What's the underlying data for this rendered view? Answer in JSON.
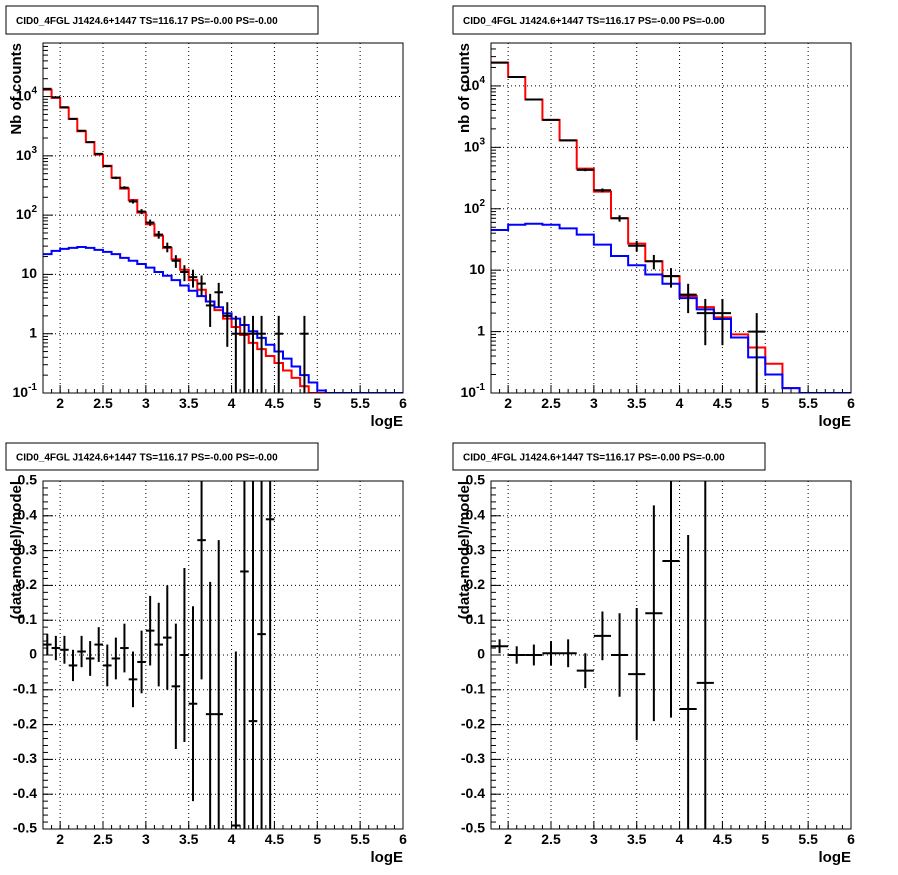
{
  "chart_data": [
    {
      "panel": "top-left",
      "type": "line",
      "title": "CID0_4FGL J1424.6+1447 TS=116.17 PS=-0.00 PS=-0.00",
      "xlabel": "logE",
      "ylabel": "Nb of counts",
      "xlim": [
        1.8,
        6.0
      ],
      "ylim": [
        0.1,
        80000
      ],
      "yscale": "log",
      "grid": true,
      "x_ticks": [
        "2",
        "2.5",
        "3",
        "3.5",
        "4",
        "4.5",
        "5",
        "5.5",
        "6"
      ],
      "y_ticks": [
        "10^-1",
        "1",
        "10",
        "10^2",
        "10^3",
        "10^4"
      ],
      "bin_edges": [
        1.8,
        1.9,
        2.0,
        2.1,
        2.2,
        2.3,
        2.4,
        2.5,
        2.6,
        2.7,
        2.8,
        2.9,
        3.0,
        3.1,
        3.2,
        3.3,
        3.4,
        3.5,
        3.6,
        3.7,
        3.8,
        3.9,
        4.0,
        4.1,
        4.2,
        4.3,
        4.4,
        4.5,
        4.6,
        4.7,
        4.8,
        4.9,
        5.0,
        5.1,
        5.2,
        5.3,
        5.4,
        5.5,
        5.6,
        5.7,
        5.8,
        5.9,
        6.0
      ],
      "series": [
        {
          "style": "histogram",
          "color": "#ff0000",
          "values": [
            13000,
            9500,
            6500,
            4200,
            2600,
            1700,
            1050,
            680,
            430,
            280,
            180,
            110,
            70,
            45,
            28,
            18,
            12,
            8,
            5.5,
            3.5,
            2.5,
            1.8,
            1.3,
            0.95,
            0.7,
            0.55,
            0.42,
            0.32,
            0.24,
            0.18,
            0.13,
            0.1,
            0.1,
            0.1,
            0.1,
            0.1,
            0.1,
            0.1,
            0.1,
            0.1,
            0.1,
            0.1
          ]
        },
        {
          "style": "histogram",
          "color": "#0000ff",
          "values": [
            22,
            25,
            27,
            28,
            29,
            28,
            26,
            24,
            22,
            19,
            17,
            15,
            13,
            11,
            9.5,
            8,
            6.5,
            5.3,
            4.3,
            3.5,
            2.8,
            2.2,
            1.8,
            1.4,
            1.1,
            0.85,
            0.65,
            0.5,
            0.38,
            0.28,
            0.2,
            0.15,
            0.11,
            0.1,
            0.1,
            0.1,
            0.1,
            0.1,
            0.1,
            0.1,
            0.1,
            0.1
          ]
        },
        {
          "style": "errorbars",
          "color": "#000000",
          "points": [
            {
              "x": 1.85,
              "y": 13500,
              "err": 120
            },
            {
              "x": 1.95,
              "y": 9700,
              "err": 100
            },
            {
              "x": 2.05,
              "y": 6600,
              "err": 80
            },
            {
              "x": 2.15,
              "y": 4200,
              "err": 65
            },
            {
              "x": 2.25,
              "y": 2650,
              "err": 50
            },
            {
              "x": 2.35,
              "y": 1700,
              "err": 40
            },
            {
              "x": 2.45,
              "y": 1080,
              "err": 33
            },
            {
              "x": 2.55,
              "y": 670,
              "err": 26
            },
            {
              "x": 2.65,
              "y": 425,
              "err": 21
            },
            {
              "x": 2.75,
              "y": 290,
              "err": 17
            },
            {
              "x": 2.85,
              "y": 170,
              "err": 13
            },
            {
              "x": 2.95,
              "y": 115,
              "err": 11
            },
            {
              "x": 3.05,
              "y": 75,
              "err": 9
            },
            {
              "x": 3.15,
              "y": 47,
              "err": 7
            },
            {
              "x": 3.25,
              "y": 29,
              "err": 5.4
            },
            {
              "x": 3.35,
              "y": 17,
              "err": 4.1
            },
            {
              "x": 3.45,
              "y": 11,
              "err": 3.3
            },
            {
              "x": 3.55,
              "y": 9,
              "err": 3
            },
            {
              "x": 3.65,
              "y": 7,
              "err": 2.6
            },
            {
              "x": 3.75,
              "y": 3,
              "err": 1.7
            },
            {
              "x": 3.85,
              "y": 5,
              "err": 2.2
            },
            {
              "x": 3.95,
              "y": 2,
              "err": 1.4
            },
            {
              "x": 4.05,
              "y": 1,
              "err": 1
            },
            {
              "x": 4.15,
              "y": 1,
              "err": 1
            },
            {
              "x": 4.25,
              "y": 1,
              "err": 1
            },
            {
              "x": 4.35,
              "y": 1,
              "err": 1
            },
            {
              "x": 4.55,
              "y": 1,
              "err": 1
            },
            {
              "x": 4.85,
              "y": 1,
              "err": 1
            }
          ]
        }
      ]
    },
    {
      "panel": "top-right",
      "type": "line",
      "title": "CID0_4FGL J1424.6+1447 TS=116.17 PS=-0.00 PS=-0.00",
      "xlabel": "logE",
      "ylabel": "nb of counts",
      "xlim": [
        1.8,
        6.0
      ],
      "ylim": [
        0.1,
        50000
      ],
      "yscale": "log",
      "grid": true,
      "x_ticks": [
        "2",
        "2.5",
        "3",
        "3.5",
        "4",
        "4.5",
        "5",
        "5.5",
        "6"
      ],
      "y_ticks": [
        "10^-1",
        "1",
        "10",
        "10^2",
        "10^3",
        "10^4"
      ],
      "bin_edges": [
        1.8,
        2.0,
        2.2,
        2.4,
        2.6,
        2.8,
        3.0,
        3.2,
        3.4,
        3.6,
        3.8,
        4.0,
        4.2,
        4.4,
        4.6,
        4.8,
        5.0,
        5.2,
        5.4,
        5.6,
        5.8,
        6.0
      ],
      "series": [
        {
          "style": "histogram",
          "color": "#ff0000",
          "values": [
            24000,
            14000,
            6000,
            2800,
            1300,
            450,
            190,
            70,
            27,
            14,
            8,
            3.8,
            2.5,
            1.7,
            0.9,
            0.55,
            0.3,
            0.12,
            0.1,
            0.1,
            0.1
          ]
        },
        {
          "style": "histogram",
          "color": "#0000ff",
          "values": [
            45,
            55,
            57,
            55,
            48,
            38,
            26,
            17,
            12,
            8.5,
            6,
            3.5,
            2.3,
            1.6,
            0.8,
            0.38,
            0.2,
            0.12,
            0.1,
            0.1,
            0.1
          ]
        },
        {
          "style": "errorbars",
          "color": "#000000",
          "points": [
            {
              "x": 1.9,
              "y": 24000,
              "err": 155
            },
            {
              "x": 2.1,
              "y": 14000,
              "err": 118
            },
            {
              "x": 2.3,
              "y": 6000,
              "err": 77
            },
            {
              "x": 2.5,
              "y": 2800,
              "err": 53
            },
            {
              "x": 2.7,
              "y": 1300,
              "err": 36
            },
            {
              "x": 2.9,
              "y": 430,
              "err": 21
            },
            {
              "x": 3.1,
              "y": 200,
              "err": 14
            },
            {
              "x": 3.3,
              "y": 70,
              "err": 8.4
            },
            {
              "x": 3.5,
              "y": 25,
              "err": 5
            },
            {
              "x": 3.7,
              "y": 14,
              "err": 3.7
            },
            {
              "x": 3.9,
              "y": 8,
              "err": 2.8
            },
            {
              "x": 4.1,
              "y": 4,
              "err": 2
            },
            {
              "x": 4.3,
              "y": 2,
              "err": 1.4
            },
            {
              "x": 4.5,
              "y": 2,
              "err": 1.4
            },
            {
              "x": 4.9,
              "y": 1,
              "err": 1
            }
          ]
        }
      ]
    },
    {
      "panel": "bottom-left",
      "type": "scatter",
      "title": "CID0_4FGL J1424.6+1447 TS=116.17 PS=-0.00 PS=-0.00",
      "xlabel": "logE",
      "ylabel": "(data-model)/model",
      "xlim": [
        1.8,
        6.0
      ],
      "ylim": [
        -0.5,
        0.5
      ],
      "grid": true,
      "x_ticks": [
        "2",
        "2.5",
        "3",
        "3.5",
        "4",
        "4.5",
        "5",
        "5.5",
        "6"
      ],
      "y_ticks": [
        "-0.5",
        "-0.4",
        "-0.3",
        "-0.2",
        "-0.1",
        "0",
        "0.1",
        "0.2",
        "0.3",
        "0.4",
        "0.5"
      ],
      "bin_halfwidth": 0.05,
      "points": [
        {
          "x": 1.85,
          "y": 0.03,
          "err": 0.03
        },
        {
          "x": 1.95,
          "y": 0.02,
          "err": 0.035
        },
        {
          "x": 2.05,
          "y": 0.015,
          "err": 0.04
        },
        {
          "x": 2.15,
          "y": -0.03,
          "err": 0.045
        },
        {
          "x": 2.25,
          "y": 0.01,
          "err": 0.045
        },
        {
          "x": 2.35,
          "y": -0.01,
          "err": 0.05
        },
        {
          "x": 2.45,
          "y": 0.03,
          "err": 0.05
        },
        {
          "x": 2.55,
          "y": -0.03,
          "err": 0.06
        },
        {
          "x": 2.65,
          "y": -0.01,
          "err": 0.06
        },
        {
          "x": 2.75,
          "y": 0.02,
          "err": 0.07
        },
        {
          "x": 2.85,
          "y": -0.07,
          "err": 0.08
        },
        {
          "x": 2.95,
          "y": -0.02,
          "err": 0.09
        },
        {
          "x": 3.05,
          "y": 0.07,
          "err": 0.1
        },
        {
          "x": 3.15,
          "y": 0.03,
          "err": 0.12
        },
        {
          "x": 3.25,
          "y": 0.05,
          "err": 0.15
        },
        {
          "x": 3.35,
          "y": -0.09,
          "err": 0.18
        },
        {
          "x": 3.45,
          "y": 0.0,
          "err": 0.25
        },
        {
          "x": 3.55,
          "y": -0.14,
          "err": 0.28
        },
        {
          "x": 3.65,
          "y": 0.33,
          "err": 0.4
        },
        {
          "x": 3.75,
          "y": -0.17,
          "err": 0.38
        },
        {
          "x": 3.85,
          "y": -0.17,
          "err": 0.5
        },
        {
          "x": 4.05,
          "y": -0.49,
          "err": 0.5
        },
        {
          "x": 4.15,
          "y": 0.24,
          "err": 0.9
        },
        {
          "x": 4.25,
          "y": -0.19,
          "err": 0.9
        },
        {
          "x": 4.35,
          "y": 0.06,
          "err": 0.9
        },
        {
          "x": 4.45,
          "y": 0.39,
          "err": 0.9
        }
      ]
    },
    {
      "panel": "bottom-right",
      "type": "scatter",
      "title": "CID0_4FGL J1424.6+1447 TS=116.17 PS=-0.00 PS=-0.00",
      "xlabel": "logE",
      "ylabel": "(data-model)/model",
      "xlim": [
        1.8,
        6.0
      ],
      "ylim": [
        -0.5,
        0.5
      ],
      "grid": true,
      "x_ticks": [
        "2",
        "2.5",
        "3",
        "3.5",
        "4",
        "4.5",
        "5",
        "5.5",
        "6"
      ],
      "y_ticks": [
        "-0.5",
        "-0.4",
        "-0.3",
        "-0.2",
        "-0.1",
        "0",
        "0.1",
        "0.2",
        "0.3",
        "0.4",
        "0.5"
      ],
      "bin_halfwidth": 0.1,
      "points": [
        {
          "x": 1.9,
          "y": 0.025,
          "err": 0.02
        },
        {
          "x": 2.1,
          "y": 0.0,
          "err": 0.025
        },
        {
          "x": 2.3,
          "y": 0.0,
          "err": 0.03
        },
        {
          "x": 2.5,
          "y": 0.005,
          "err": 0.035
        },
        {
          "x": 2.7,
          "y": 0.005,
          "err": 0.04
        },
        {
          "x": 2.9,
          "y": -0.045,
          "err": 0.05
        },
        {
          "x": 3.1,
          "y": 0.055,
          "err": 0.07
        },
        {
          "x": 3.3,
          "y": 0.0,
          "err": 0.12
        },
        {
          "x": 3.5,
          "y": -0.055,
          "err": 0.19
        },
        {
          "x": 3.7,
          "y": 0.12,
          "err": 0.31
        },
        {
          "x": 3.9,
          "y": 0.27,
          "err": 0.45
        },
        {
          "x": 4.1,
          "y": -0.155,
          "err": 0.5
        },
        {
          "x": 4.3,
          "y": -0.08,
          "err": 0.95
        }
      ]
    }
  ]
}
